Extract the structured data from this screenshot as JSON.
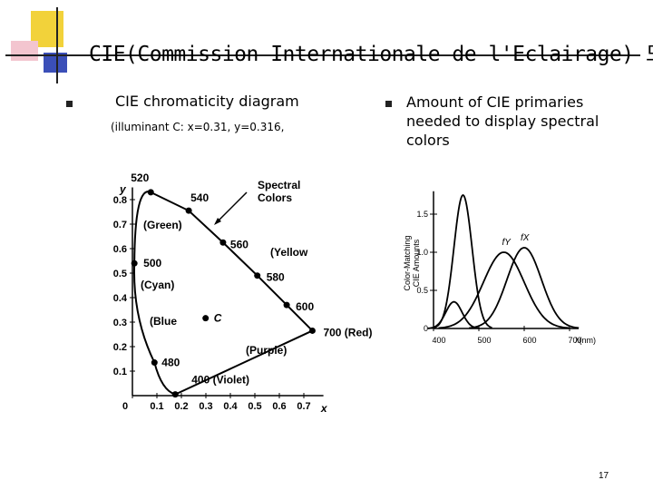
{
  "title": "CIE(Commission Internationale de l'Eclairage) 모델",
  "left_item": {
    "heading": "CIE chromaticity diagram",
    "sub": "(illuminant C: x=0.31, y=0.316,"
  },
  "right_item": {
    "heading": "Amount of  CIE primaries needed to display spectral colors"
  },
  "page_number": "17",
  "chart_data": [
    {
      "type": "diagram",
      "axes": {
        "x_label": "x",
        "y_label": "y",
        "x_ticks": [
          "0",
          "0.1",
          "0.2",
          "0.3",
          "0.4",
          "0.5",
          "0.6",
          "0.7"
        ],
        "y_ticks": [
          "0.1",
          "0.2",
          "0.3",
          "0.4",
          "0.5",
          "0.6",
          "0.7",
          "0.8"
        ],
        "xlim": [
          0,
          0.8
        ],
        "ylim": [
          0,
          0.85
        ]
      },
      "legend_text": "Spectral Colors",
      "illuminant": {
        "label": "C",
        "x": 0.31,
        "y": 0.316
      },
      "points": [
        {
          "label": "400 (Violet)",
          "x": 0.175,
          "y": 0.005
        },
        {
          "label": "480",
          "x": 0.09,
          "y": 0.135
        },
        {
          "label": "500",
          "x": 0.008,
          "y": 0.54
        },
        {
          "label": "520",
          "x": 0.075,
          "y": 0.83
        },
        {
          "label": "540",
          "x": 0.23,
          "y": 0.755
        },
        {
          "label": "560",
          "x": 0.37,
          "y": 0.625
        },
        {
          "label": "580",
          "x": 0.51,
          "y": 0.49
        },
        {
          "label": "600",
          "x": 0.63,
          "y": 0.37
        },
        {
          "label": "700 (Red)",
          "x": 0.735,
          "y": 0.265
        }
      ],
      "region_labels": [
        "(Green)",
        "(Yellow",
        "(Cyan)",
        "(Blue",
        "(Purple)"
      ]
    },
    {
      "type": "line",
      "ylabel": "Color-Matching CIE Amounts",
      "xlabel": "λ(nm)",
      "x_ticks": [
        "400",
        "500",
        "600",
        "700"
      ],
      "y_ticks": [
        "0",
        "0.5",
        "1.0",
        "1.5"
      ],
      "xlim": [
        380,
        720
      ],
      "ylim": [
        0,
        1.8
      ],
      "series": [
        {
          "name": "",
          "peak_x": 445,
          "peak_y": 0.35,
          "width": 18
        },
        {
          "name": "",
          "peak_x": 465,
          "peak_y": 1.75,
          "width": 20
        },
        {
          "name": "fY",
          "peak_x": 555,
          "peak_y": 1.0,
          "width": 45
        },
        {
          "name": "fX",
          "peak_x": 600,
          "peak_y": 1.06,
          "width": 38
        }
      ]
    }
  ]
}
